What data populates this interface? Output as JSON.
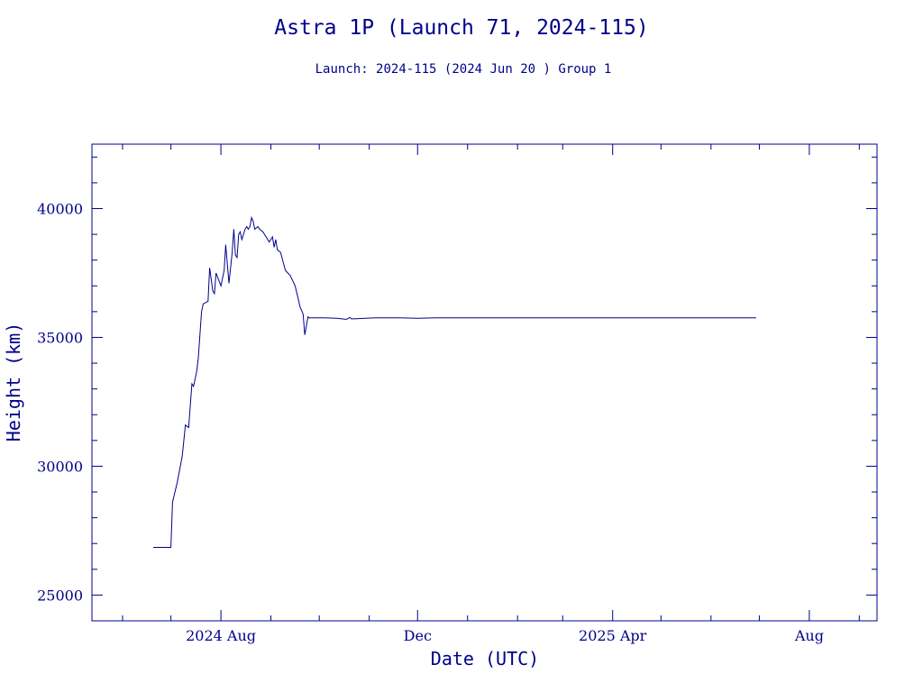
{
  "colors": {
    "ink": "#00008b",
    "background": "#ffffff"
  },
  "chart_data": {
    "type": "line",
    "title": "Astra 1P (Launch 71, 2024-115)",
    "subtitle": "Launch: 2024-115  (2024 Jun 20 )  Group 1",
    "xlabel": "Date (UTC)",
    "ylabel": "Height (km)",
    "x_is_date": true,
    "xlim": [
      "2024-05-13",
      "2025-09-12"
    ],
    "ylim": [
      24000,
      42500
    ],
    "x_ticks": [
      {
        "date": "2024-08-01",
        "label": "2024 Aug"
      },
      {
        "date": "2024-12-01",
        "label": "Dec"
      },
      {
        "date": "2025-04-01",
        "label": "2025 Apr"
      },
      {
        "date": "2025-08-01",
        "label": "Aug"
      }
    ],
    "y_ticks": [
      25000,
      30000,
      35000,
      40000
    ],
    "grid": false,
    "series": [
      {
        "x": [
          "2024-06-20",
          "2024-07-01",
          "2024-07-02",
          "2024-07-05",
          "2024-07-08",
          "2024-07-10",
          "2024-07-12",
          "2024-07-14",
          "2024-07-15",
          "2024-07-17",
          "2024-07-18",
          "2024-07-20",
          "2024-07-21",
          "2024-07-24",
          "2024-07-25",
          "2024-07-27",
          "2024-07-28",
          "2024-07-29",
          "2024-08-01",
          "2024-08-02",
          "2024-08-03",
          "2024-08-04",
          "2024-08-06",
          "2024-08-07",
          "2024-08-08",
          "2024-08-09",
          "2024-08-10",
          "2024-08-11",
          "2024-08-12",
          "2024-08-13",
          "2024-08-14",
          "2024-08-15",
          "2024-08-16",
          "2024-08-17",
          "2024-08-18",
          "2024-08-19",
          "2024-08-20",
          "2024-08-21",
          "2024-08-22",
          "2024-08-24",
          "2024-08-25",
          "2024-08-27",
          "2024-08-29",
          "2024-08-31",
          "2024-09-02",
          "2024-09-03",
          "2024-09-04",
          "2024-09-05",
          "2024-09-07",
          "2024-09-10",
          "2024-09-13",
          "2024-09-16",
          "2024-09-18",
          "2024-09-19",
          "2024-09-21",
          "2024-09-22",
          "2024-09-24",
          "2024-09-25",
          "2024-09-26",
          "2024-09-27",
          "2024-09-28",
          "2024-09-30",
          "2024-10-04",
          "2024-10-08",
          "2024-10-12",
          "2024-10-15",
          "2024-10-18",
          "2024-10-20",
          "2024-10-21",
          "2024-10-22",
          "2024-10-23",
          "2024-10-24",
          "2024-10-25",
          "2024-11-05",
          "2024-11-20",
          "2024-12-01",
          "2024-12-12",
          "2024-12-16",
          "2024-12-18",
          "2024-12-20",
          "2024-12-26",
          "2025-01-10",
          "2025-01-25",
          "2025-02-20",
          "2025-02-22",
          "2025-03-10",
          "2025-04-15",
          "2025-05-20",
          "2025-06-29"
        ],
        "y": [
          26850,
          26850,
          28600,
          29400,
          30400,
          31600,
          31500,
          33200,
          33100,
          33700,
          34200,
          36000,
          36300,
          36400,
          37700,
          36800,
          36700,
          37500,
          37000,
          37300,
          37600,
          38600,
          37100,
          37700,
          38300,
          39200,
          38200,
          38100,
          39000,
          39100,
          38800,
          39000,
          39200,
          39300,
          39200,
          39300,
          39650,
          39500,
          39200,
          39300,
          39200,
          39100,
          38900,
          38700,
          38900,
          38500,
          38800,
          38400,
          38300,
          37600,
          37400,
          37000,
          36500,
          36200,
          35900,
          35100,
          35800,
          35750,
          35760,
          35760,
          35760,
          35760,
          35760,
          35750,
          35740,
          35720,
          35700,
          35780,
          35720,
          35720,
          35730,
          35720,
          35730,
          35760,
          35760,
          35740,
          35760,
          35760,
          35760,
          35760,
          35760,
          35760,
          35760,
          35760,
          35760,
          35760,
          35760,
          35760,
          35760
        ]
      }
    ]
  }
}
